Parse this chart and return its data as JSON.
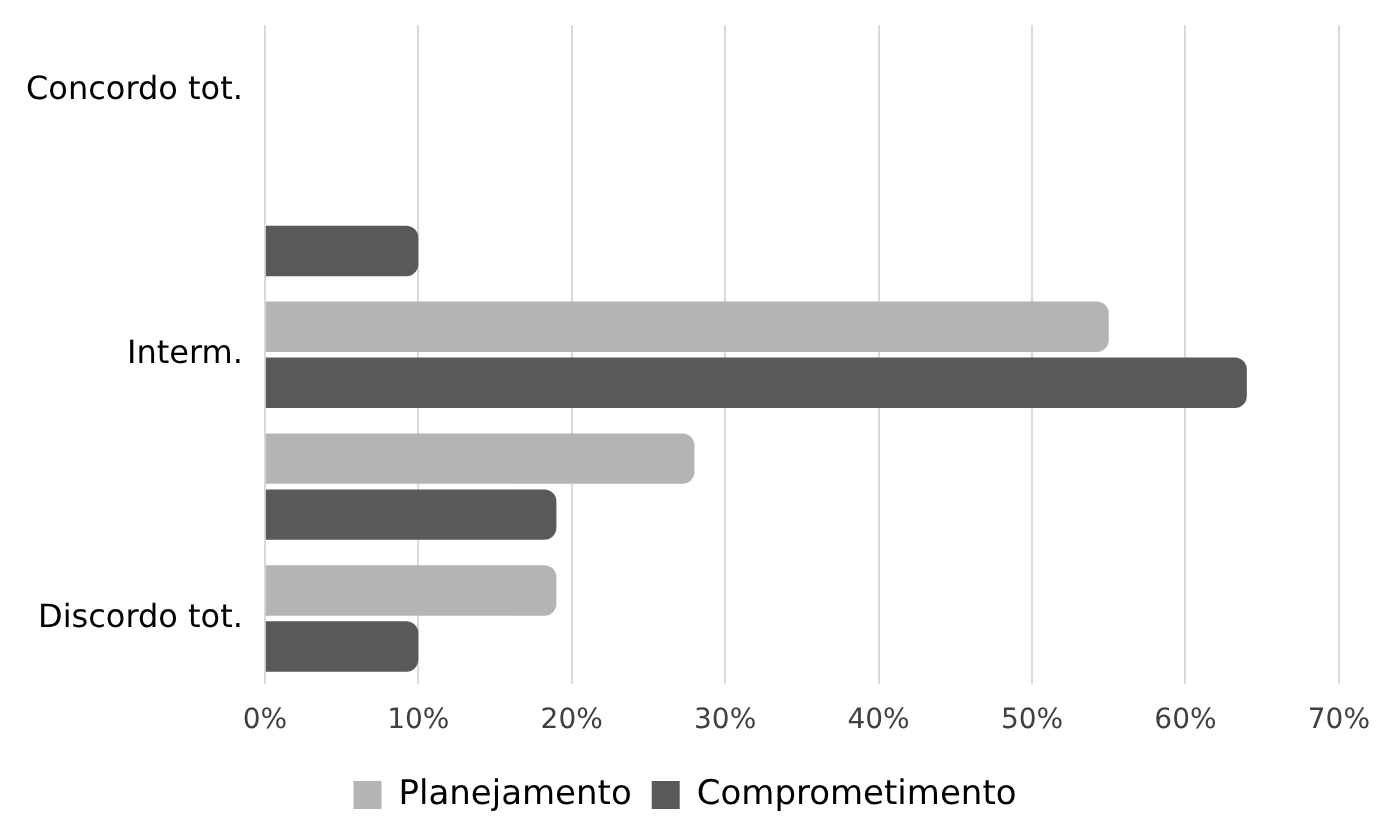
{
  "chart_data": {
    "type": "bar",
    "orientation": "horizontal",
    "categories": [
      "Concordo tot.",
      null,
      "Interm.",
      null,
      "Discordo tot."
    ],
    "series": [
      {
        "name": "Planejamento",
        "color": "#b4b4b4",
        "values": [
          0,
          0,
          55,
          28,
          19
        ]
      },
      {
        "name": "Comprometimento",
        "color": "#595959",
        "values": [
          0,
          10,
          64,
          19,
          10
        ]
      }
    ],
    "xlim": [
      0,
      70
    ],
    "xticks": [
      {
        "value": 0,
        "label": "0%"
      },
      {
        "value": 10,
        "label": "10%"
      },
      {
        "value": 20,
        "label": "20%"
      },
      {
        "value": 30,
        "label": "30%"
      },
      {
        "value": 40,
        "label": "40%"
      },
      {
        "value": 50,
        "label": "50%"
      },
      {
        "value": 60,
        "label": "60%"
      },
      {
        "value": 70,
        "label": "70%"
      }
    ],
    "grid": "x",
    "legend": "bottom"
  }
}
